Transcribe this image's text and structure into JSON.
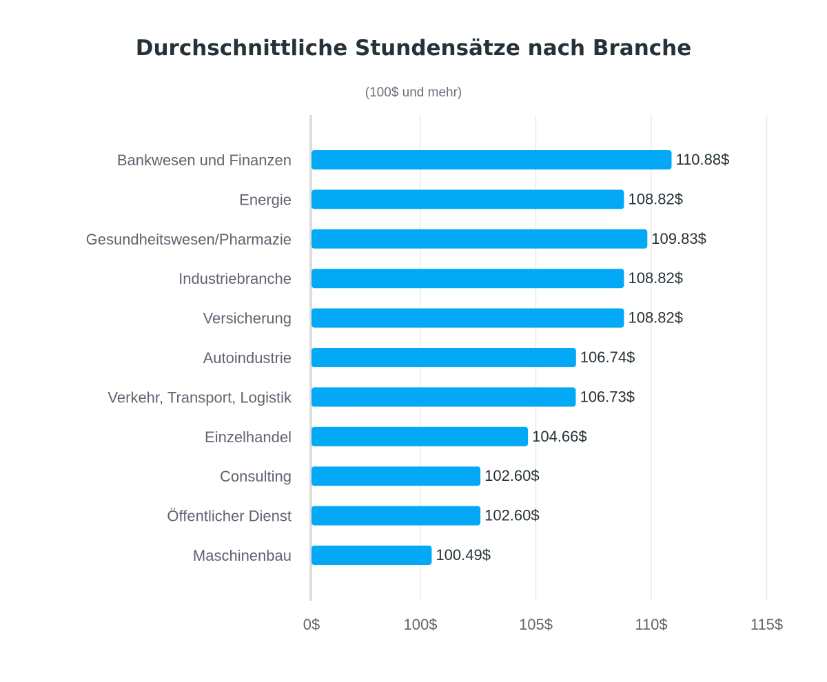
{
  "chart_data": {
    "type": "bar",
    "orientation": "horizontal",
    "title": "Durchschnittliche Stundensätze nach Branche",
    "subtitle": "(100$ und mehr)",
    "categories": [
      "Bankwesen und Finanzen",
      "Energie",
      "Gesundheitswesen/Pharmazie",
      "Industriebranche",
      "Versicherung",
      "Autoindustrie",
      "Verkehr, Transport, Logistik",
      "Einzelhandel",
      "Consulting",
      "Öffentlicher Dienst",
      "Maschinenbau"
    ],
    "values": [
      110.88,
      108.82,
      109.83,
      108.82,
      108.82,
      106.74,
      106.73,
      104.66,
      102.6,
      102.6,
      100.49
    ],
    "value_labels": [
      "110.88$",
      "108.82$",
      "109.83$",
      "108.82$",
      "108.82$",
      "106.74$",
      "106.73$",
      "104.66$",
      "102.60$",
      "102.60$",
      "100.49$"
    ],
    "x_ticks": [
      {
        "value": 0,
        "label": "0$"
      },
      {
        "value": 100,
        "label": "100$"
      },
      {
        "value": 105,
        "label": "105$"
      },
      {
        "value": 110,
        "label": "110$"
      },
      {
        "value": 115,
        "label": "115$"
      }
    ],
    "axis_break": "the first interval runs from 0$ to 100$",
    "xlim": [
      0,
      115
    ],
    "grid": true,
    "colors": {
      "bar": "#03a9f4",
      "grid": "#e6e6e6",
      "axis": "#dddddd",
      "title": "#263238"
    }
  }
}
